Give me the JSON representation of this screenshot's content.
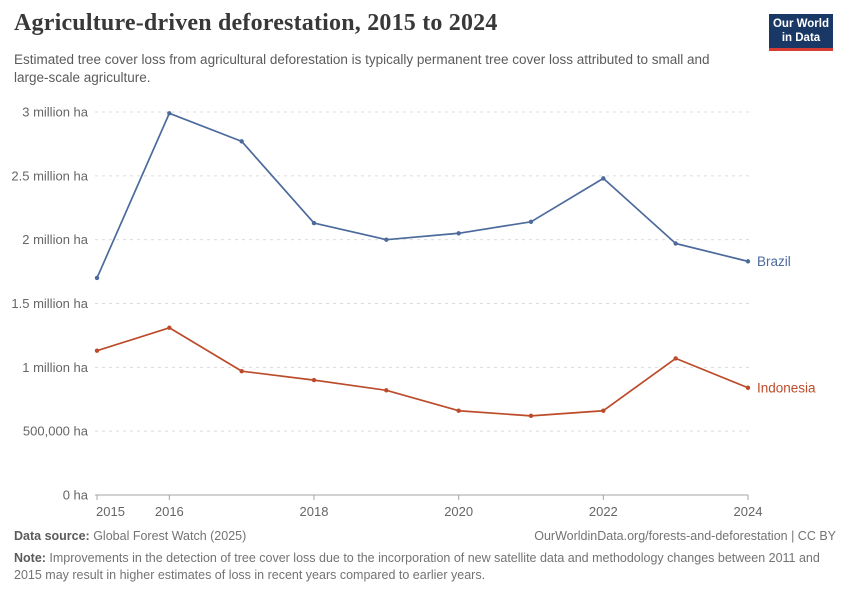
{
  "header": {
    "title": "Agriculture-driven deforestation, 2015 to 2024",
    "subtitle": "Estimated tree cover loss from agricultural deforestation is typically permanent tree cover loss attributed to small and large-scale agriculture.",
    "logo": {
      "line1": "Our World",
      "line2": "in Data",
      "bg_color": "#1A3866",
      "bar_color": "#D73C34"
    }
  },
  "chart_data": {
    "type": "line",
    "title": "Agriculture-driven deforestation, 2015 to 2024",
    "unit": "million ha",
    "x": [
      2015,
      2016,
      2017,
      2018,
      2019,
      2020,
      2021,
      2022,
      2023,
      2024
    ],
    "series": [
      {
        "name": "Brazil",
        "color": "#4C6A9C",
        "values": [
          1.7,
          2.99,
          2.77,
          2.13,
          2.0,
          2.05,
          2.14,
          2.48,
          1.97,
          1.83
        ]
      },
      {
        "name": "Indonesia",
        "color": "#BC4B2A",
        "values": [
          1.13,
          1.31,
          0.97,
          0.9,
          0.82,
          0.66,
          0.62,
          0.66,
          1.07,
          0.84
        ]
      }
    ],
    "ylim": [
      0,
      3
    ],
    "y_ticks": [
      {
        "value": 0,
        "label": "0 ha"
      },
      {
        "value": 0.5,
        "label": "500,000 ha"
      },
      {
        "value": 1,
        "label": "1 million ha"
      },
      {
        "value": 1.5,
        "label": "1.5 million ha"
      },
      {
        "value": 2,
        "label": "2 million ha"
      },
      {
        "value": 2.5,
        "label": "2.5 million ha"
      },
      {
        "value": 3,
        "label": "3 million ha"
      }
    ],
    "x_tick_labels": [
      2015,
      2016,
      2018,
      2020,
      2022,
      2024
    ],
    "grid": "horizontal dashed",
    "legend_position": "end-of-line labels"
  },
  "footer": {
    "datasource_label": "Data source:",
    "datasource_value": " Global Forest Watch (2025)",
    "attribution": "OurWorldinData.org/forests-and-deforestation | CC BY",
    "note_label": "Note:",
    "note_text": " Improvements in the detection of tree cover loss due to the incorporation of new satellite data and methodology changes between 2011 and 2015 may result in higher estimates of loss in recent years compared to earlier years."
  }
}
